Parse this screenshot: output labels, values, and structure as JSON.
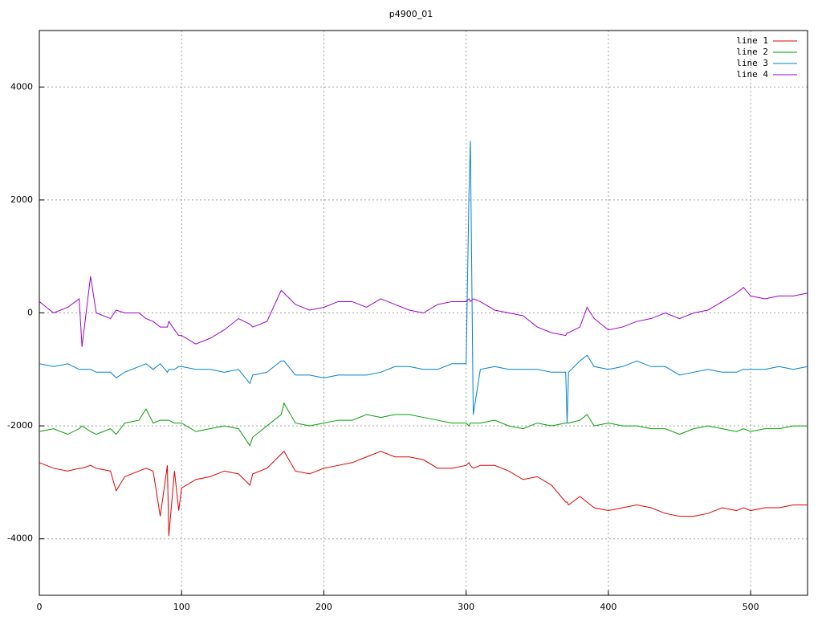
{
  "chart_data": {
    "type": "line",
    "title": "p4900_01",
    "x": [
      0,
      10,
      20,
      28,
      30,
      36,
      40,
      50,
      54,
      60,
      70,
      75,
      80,
      85,
      90,
      91,
      95,
      98,
      100,
      110,
      120,
      130,
      140,
      148,
      150,
      160,
      170,
      172,
      180,
      190,
      200,
      210,
      220,
      230,
      240,
      250,
      260,
      270,
      280,
      290,
      300,
      302,
      303,
      305,
      310,
      320,
      330,
      340,
      350,
      360,
      370,
      371,
      372,
      380,
      385,
      390,
      400,
      410,
      420,
      430,
      440,
      450,
      460,
      470,
      480,
      490,
      495,
      500,
      510,
      520,
      530,
      540
    ],
    "series": [
      {
        "name": "line 1",
        "color": "#e00000",
        "values": [
          -2650,
          -2750,
          -2800,
          -2750,
          -2750,
          -2700,
          -2750,
          -2800,
          -3150,
          -2900,
          -2800,
          -2750,
          -2800,
          -3600,
          -2700,
          -3950,
          -2800,
          -3500,
          -3100,
          -2950,
          -2900,
          -2800,
          -2850,
          -3050,
          -2850,
          -2750,
          -2500,
          -2450,
          -2800,
          -2850,
          -2750,
          -2700,
          -2650,
          -2550,
          -2450,
          -2550,
          -2550,
          -2600,
          -2750,
          -2750,
          -2700,
          -2650,
          -2700,
          -2750,
          -2700,
          -2700,
          -2800,
          -2950,
          -2900,
          -3050,
          -3350,
          -3350,
          -3400,
          -3250,
          -3350,
          -3450,
          -3500,
          -3450,
          -3400,
          -3450,
          -3550,
          -3600,
          -3600,
          -3550,
          -3450,
          -3500,
          -3450,
          -3500,
          -3450,
          -3450,
          -3400,
          -3400
        ]
      },
      {
        "name": "line 2",
        "color": "#00a000",
        "values": [
          -2100,
          -2050,
          -2150,
          -2050,
          -2000,
          -2100,
          -2150,
          -2050,
          -2150,
          -1950,
          -1900,
          -1700,
          -1950,
          -1900,
          -1900,
          -1900,
          -1950,
          -1950,
          -1950,
          -2100,
          -2050,
          -2000,
          -2050,
          -2350,
          -2200,
          -2000,
          -1800,
          -1600,
          -1950,
          -2000,
          -1950,
          -1900,
          -1900,
          -1800,
          -1850,
          -1800,
          -1800,
          -1850,
          -1900,
          -1950,
          -1950,
          -2000,
          -1950,
          -1950,
          -1950,
          -1900,
          -2000,
          -2050,
          -1950,
          -2000,
          -1950,
          -1950,
          -1950,
          -1900,
          -1800,
          -2000,
          -1950,
          -2000,
          -2000,
          -2050,
          -2050,
          -2150,
          -2050,
          -2000,
          -2050,
          -2100,
          -2050,
          -2100,
          -2050,
          -2050,
          -2000,
          -2000
        ]
      },
      {
        "name": "line 3",
        "color": "#0080d0",
        "values": [
          -900,
          -950,
          -900,
          -1000,
          -1000,
          -1000,
          -1050,
          -1050,
          -1150,
          -1050,
          -950,
          -900,
          -1000,
          -900,
          -1050,
          -1000,
          -1000,
          -950,
          -950,
          -1000,
          -1000,
          -1050,
          -1000,
          -1250,
          -1100,
          -1050,
          -850,
          -850,
          -1100,
          -1100,
          -1150,
          -1100,
          -1100,
          -1100,
          -1050,
          -950,
          -950,
          -1000,
          -1000,
          -900,
          -900,
          2100,
          3050,
          -1800,
          -1000,
          -950,
          -1000,
          -1000,
          -1000,
          -1050,
          -1050,
          -1950,
          -1050,
          -850,
          -750,
          -950,
          -1000,
          -950,
          -850,
          -950,
          -950,
          -1100,
          -1050,
          -1000,
          -1050,
          -1050,
          -1000,
          -1000,
          -1000,
          -950,
          -1000,
          -950
        ]
      },
      {
        "name": "line 4",
        "color": "#a000d0",
        "values": [
          200,
          0,
          100,
          250,
          -600,
          650,
          0,
          -100,
          50,
          0,
          0,
          -100,
          -150,
          -250,
          -250,
          -150,
          -300,
          -400,
          -400,
          -550,
          -450,
          -300,
          -100,
          -200,
          -250,
          -150,
          400,
          350,
          150,
          50,
          100,
          200,
          200,
          100,
          250,
          150,
          50,
          0,
          150,
          200,
          200,
          250,
          200,
          250,
          200,
          50,
          0,
          -50,
          -250,
          -350,
          -400,
          -350,
          -350,
          -250,
          100,
          -100,
          -300,
          -250,
          -150,
          -100,
          0,
          -100,
          0,
          50,
          200,
          350,
          450,
          300,
          250,
          300,
          300,
          350
        ]
      }
    ],
    "xlim": [
      0,
      540
    ],
    "ylim": [
      -5000,
      5000
    ],
    "xticks": [
      0,
      100,
      200,
      300,
      400,
      500
    ],
    "yticks": [
      -4000,
      -2000,
      0,
      2000,
      4000
    ],
    "grid": true,
    "legend": "upper right"
  }
}
